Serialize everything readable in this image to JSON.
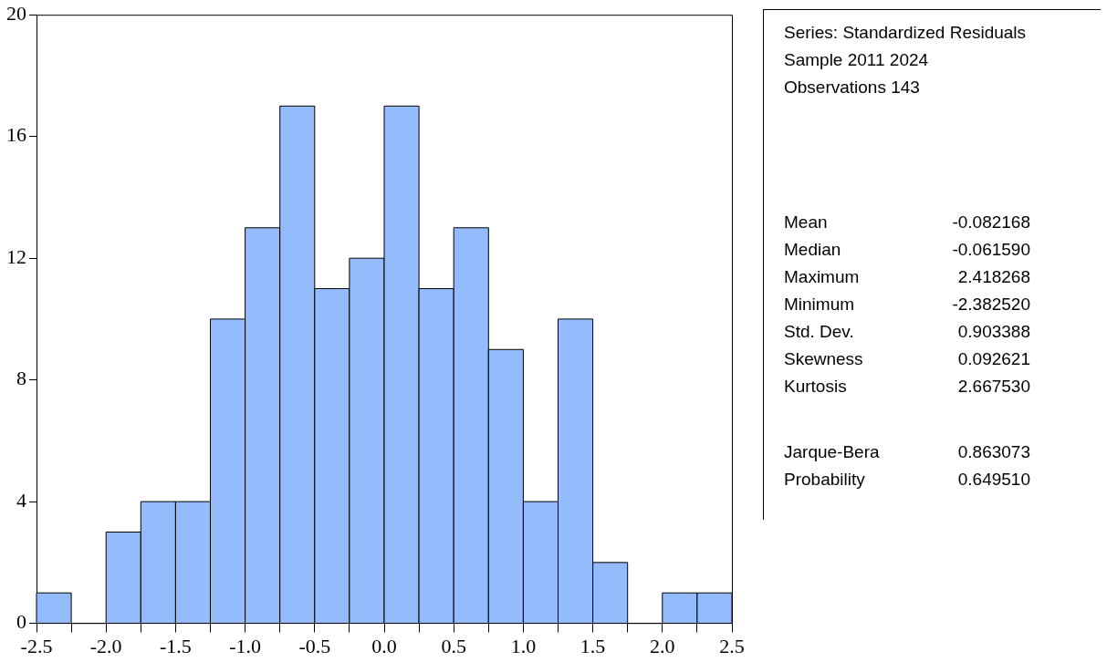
{
  "chart_data": {
    "type": "histogram",
    "bins": [
      -2.5,
      -2.25,
      -2.0,
      -1.75,
      -1.5,
      -1.25,
      -1.0,
      -0.75,
      -0.5,
      -0.25,
      0.0,
      0.25,
      0.5,
      0.75,
      1.0,
      1.25,
      1.5,
      1.75,
      2.0,
      2.25,
      2.5
    ],
    "values": [
      1,
      0,
      3,
      4,
      4,
      10,
      13,
      17,
      11,
      12,
      17,
      11,
      13,
      9,
      4,
      10,
      2,
      0,
      1,
      1
    ],
    "color": "#94bbfc",
    "xlim": [
      -2.5,
      2.5
    ],
    "xticks": [
      -2.5,
      {
        "value": -2.25,
        "label": null
      },
      {
        "value": -2.0,
        "label": "-2.0"
      },
      {
        "value": -1.75,
        "label": null
      },
      -1.5,
      {
        "value": -1.25,
        "label": null
      },
      {
        "value": -1.0,
        "label": "-1.0"
      },
      {
        "value": -0.75,
        "label": null
      },
      -0.5,
      {
        "value": -0.25,
        "label": null
      },
      {
        "value": 0.0,
        "label": "0.0"
      },
      {
        "value": 0.25,
        "label": null
      },
      0.5,
      {
        "value": 0.75,
        "label": null
      },
      {
        "value": 1.0,
        "label": "1.0"
      },
      {
        "value": 1.25,
        "label": null
      },
      1.5,
      {
        "value": 1.75,
        "label": null
      },
      {
        "value": 2.0,
        "label": "2.0"
      },
      {
        "value": 2.25,
        "label": null
      },
      2.5
    ],
    "ylim": [
      0,
      20
    ],
    "yticks": [
      0,
      4,
      8,
      12,
      16,
      20
    ],
    "grid": false,
    "legend": false,
    "annotations": [
      "Series: Standardized Residuals",
      "Sample 2011 2024",
      "Observations 143",
      "Mean\t-0.082168",
      "Median\t-0.061590",
      "Maximum\t2.418268",
      "Minimum\t-2.382520",
      "Std. Dev.\t0.903388",
      "Skewness\t0.092621",
      "Kurtosis\t2.667530",
      "Jarque-Bera\t0.863073",
      "Probability\t0.649510"
    ]
  }
}
